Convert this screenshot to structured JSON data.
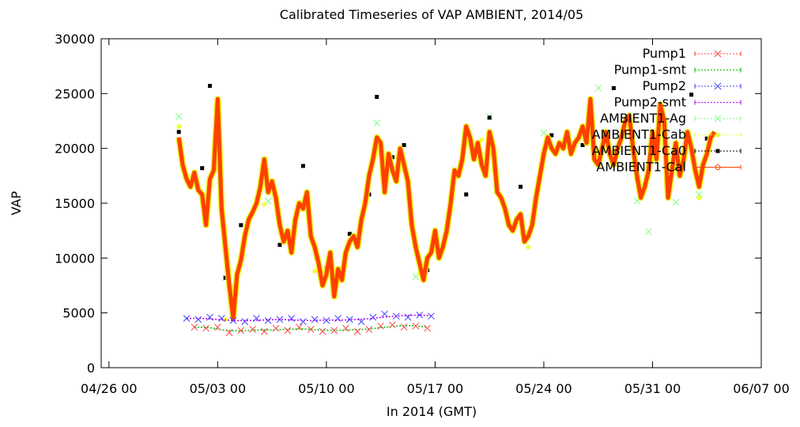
{
  "chart_data": {
    "type": "line",
    "title": "Calibrated Timeseries of VAP AMBIENT, 2014/05",
    "xlabel": "In 2014 (GMT)",
    "ylabel": "VAP",
    "xlim": [
      "2014-04-25T12:00",
      "2014-06-07T00:00"
    ],
    "ylim": [
      0,
      30000
    ],
    "x_ticks": [
      {
        "label": "04/26 00",
        "date": "2014-04-26T00:00"
      },
      {
        "label": "05/03 00",
        "date": "2014-05-03T00:00"
      },
      {
        "label": "05/10 00",
        "date": "2014-05-10T00:00"
      },
      {
        "label": "05/17 00",
        "date": "2014-05-17T00:00"
      },
      {
        "label": "05/24 00",
        "date": "2014-05-24T00:00"
      },
      {
        "label": "05/31 00",
        "date": "2014-05-31T00:00"
      },
      {
        "label": "06/07 00",
        "date": "2014-06-07T00:00"
      }
    ],
    "y_ticks": [
      "0",
      "5000",
      "10000",
      "15000",
      "20000",
      "25000",
      "30000"
    ],
    "legend_position": "top-right",
    "series": [
      {
        "name": "Pump1",
        "color": "#ff4040",
        "marker": "x",
        "style": "markers",
        "x": [
          "2014-05-01T12:00",
          "2014-05-02T06:00",
          "2014-05-03T00:00",
          "2014-05-03T18:00",
          "2014-05-04T12:00",
          "2014-05-05T06:00",
          "2014-05-06T00:00",
          "2014-05-06T18:00",
          "2014-05-07T12:00",
          "2014-05-08T06:00",
          "2014-05-09T00:00",
          "2014-05-09T18:00",
          "2014-05-10T12:00",
          "2014-05-11T06:00",
          "2014-05-12T00:00",
          "2014-05-12T18:00",
          "2014-05-13T12:00",
          "2014-05-14T06:00",
          "2014-05-15T00:00",
          "2014-05-15T18:00",
          "2014-05-16T12:00"
        ],
        "y": [
          3700,
          3600,
          3700,
          3200,
          3400,
          3500,
          3300,
          3600,
          3400,
          3700,
          3500,
          3300,
          3400,
          3600,
          3300,
          3500,
          3800,
          3900,
          3700,
          3800,
          3600
        ]
      },
      {
        "name": "Pump1-smt",
        "color": "#00c000",
        "style": "dotted-line",
        "x": [
          "2014-05-01T12:00",
          "2014-05-02T12:00",
          "2014-05-03T12:00",
          "2014-05-04T12:00",
          "2014-05-05T12:00",
          "2014-05-06T12:00",
          "2014-05-07T12:00",
          "2014-05-08T12:00",
          "2014-05-09T12:00",
          "2014-05-10T12:00",
          "2014-05-11T12:00",
          "2014-05-12T12:00",
          "2014-05-13T12:00",
          "2014-05-14T12:00",
          "2014-05-15T12:00",
          "2014-05-16T12:00"
        ],
        "y": [
          3700,
          3650,
          3400,
          3350,
          3450,
          3450,
          3500,
          3550,
          3450,
          3400,
          3450,
          3500,
          3650,
          3800,
          3850,
          3700
        ]
      },
      {
        "name": "Pump2",
        "color": "#4040ff",
        "marker": "x",
        "style": "markers",
        "x": [
          "2014-05-01T00:00",
          "2014-05-01T18:00",
          "2014-05-02T12:00",
          "2014-05-03T06:00",
          "2014-05-04T00:00",
          "2014-05-04T18:00",
          "2014-05-05T12:00",
          "2014-05-06T06:00",
          "2014-05-07T00:00",
          "2014-05-07T18:00",
          "2014-05-08T12:00",
          "2014-05-09T06:00",
          "2014-05-10T00:00",
          "2014-05-10T18:00",
          "2014-05-11T12:00",
          "2014-05-12T06:00",
          "2014-05-13T00:00",
          "2014-05-13T18:00",
          "2014-05-14T12:00",
          "2014-05-15T06:00",
          "2014-05-16T00:00",
          "2014-05-16T18:00"
        ],
        "y": [
          4500,
          4400,
          4600,
          4500,
          4300,
          4200,
          4500,
          4300,
          4400,
          4500,
          4200,
          4400,
          4300,
          4500,
          4400,
          4200,
          4600,
          4900,
          4700,
          4600,
          4800,
          4700
        ]
      },
      {
        "name": "Pump2-smt",
        "color": "#c000ff",
        "style": "dotted-line",
        "x": [
          "2014-05-01T00:00",
          "2014-05-02T00:00",
          "2014-05-03T00:00",
          "2014-05-04T00:00",
          "2014-05-05T00:00",
          "2014-05-06T00:00",
          "2014-05-07T00:00",
          "2014-05-08T00:00",
          "2014-05-09T00:00",
          "2014-05-10T00:00",
          "2014-05-11T00:00",
          "2014-05-12T00:00",
          "2014-05-13T00:00",
          "2014-05-14T00:00",
          "2014-05-15T00:00",
          "2014-05-16T00:00",
          "2014-05-16T18:00"
        ],
        "y": [
          4500,
          4500,
          4400,
          4300,
          4300,
          4350,
          4400,
          4350,
          4300,
          4350,
          4350,
          4400,
          4500,
          4650,
          4750,
          4800,
          4750
        ]
      },
      {
        "name": "AMBIENT1-Ag",
        "color": "#80ff80",
        "marker": "x",
        "style": "markers",
        "x": [
          "2014-04-30T12:00",
          "2014-05-01T12:00",
          "2014-05-02T12:00",
          "2014-05-03T12:00",
          "2014-05-06T06:00",
          "2014-05-10T12:00",
          "2014-05-13T06:00",
          "2014-05-15T18:00",
          "2014-05-20T12:00",
          "2014-05-24T00:00",
          "2014-05-27T12:00",
          "2014-05-30T00:00",
          "2014-05-30T18:00",
          "2014-06-01T12:00",
          "2014-06-03T00:00"
        ],
        "y": [
          22900,
          17400,
          16800,
          8200,
          15200,
          6800,
          22300,
          8300,
          22900,
          21400,
          25500,
          15200,
          12400,
          15100,
          15800
        ]
      },
      {
        "name": "AMBIENT1-Cab",
        "color": "#f0ff40",
        "marker": "dot",
        "style": "markers",
        "x": [
          "2014-04-30T12:00",
          "2014-05-02T00:00",
          "2014-05-03T12:00",
          "2014-05-06T00:00",
          "2014-05-09T06:00",
          "2014-05-13T06:00",
          "2014-05-16T00:00",
          "2014-05-20T00:00",
          "2014-05-23T00:00",
          "2014-05-27T00:00",
          "2014-05-31T00:00",
          "2014-06-03T00:00"
        ],
        "y": [
          22000,
          15500,
          4400,
          14900,
          8800,
          20500,
          8600,
          20800,
          11000,
          23500,
          18900,
          15500
        ]
      },
      {
        "name": "AMBIENT1-Ca0",
        "color": "#000000",
        "marker": "square",
        "style": "markers",
        "x": [
          "2014-04-30T12:00",
          "2014-05-01T06:00",
          "2014-05-02T00:00",
          "2014-05-02T12:00",
          "2014-05-03T12:00",
          "2014-05-04T12:00",
          "2014-05-06T00:00",
          "2014-05-07T00:00",
          "2014-05-08T12:00",
          "2014-05-10T00:00",
          "2014-05-11T12:00",
          "2014-05-12T18:00",
          "2014-05-13T06:00",
          "2014-05-14T06:00",
          "2014-05-15T00:00",
          "2014-05-16T12:00",
          "2014-05-17T18:00",
          "2014-05-19T00:00",
          "2014-05-20T12:00",
          "2014-05-22T12:00",
          "2014-05-24T12:00",
          "2014-05-26T12:00",
          "2014-05-28T12:00",
          "2014-05-30T00:00",
          "2014-05-31T00:00",
          "2014-06-01T12:00",
          "2014-06-02T12:00",
          "2014-06-03T12:00"
        ],
        "y": [
          21500,
          16800,
          18200,
          25700,
          8200,
          13000,
          17800,
          11200,
          18400,
          9100,
          12200,
          15800,
          24700,
          19200,
          20300,
          8900,
          12400,
          15800,
          22800,
          16500,
          21200,
          20300,
          25500,
          17200,
          20300,
          18200,
          24900,
          20900
        ]
      },
      {
        "name": "AMBIENT1-Cal",
        "color": "#ff4000",
        "marker": "circle",
        "style": "thick-line",
        "x": [
          "2014-04-30T12:00",
          "2014-04-30T18:00",
          "2014-05-01T00:00",
          "2014-05-01T06:00",
          "2014-05-01T12:00",
          "2014-05-01T18:00",
          "2014-05-02T00:00",
          "2014-05-02T06:00",
          "2014-05-02T12:00",
          "2014-05-02T18:00",
          "2014-05-03T00:00",
          "2014-05-03T06:00",
          "2014-05-03T12:00",
          "2014-05-03T18:00",
          "2014-05-04T00:00",
          "2014-05-04T06:00",
          "2014-05-04T12:00",
          "2014-05-04T18:00",
          "2014-05-05T00:00",
          "2014-05-05T06:00",
          "2014-05-05T12:00",
          "2014-05-05T18:00",
          "2014-05-06T00:00",
          "2014-05-06T06:00",
          "2014-05-06T12:00",
          "2014-05-06T18:00",
          "2014-05-07T00:00",
          "2014-05-07T06:00",
          "2014-05-07T12:00",
          "2014-05-07T18:00",
          "2014-05-08T00:00",
          "2014-05-08T06:00",
          "2014-05-08T12:00",
          "2014-05-08T18:00",
          "2014-05-09T00:00",
          "2014-05-09T06:00",
          "2014-05-09T12:00",
          "2014-05-09T18:00",
          "2014-05-10T00:00",
          "2014-05-10T06:00",
          "2014-05-10T12:00",
          "2014-05-10T18:00",
          "2014-05-11T00:00",
          "2014-05-11T06:00",
          "2014-05-11T12:00",
          "2014-05-11T18:00",
          "2014-05-12T00:00",
          "2014-05-12T06:00",
          "2014-05-12T12:00",
          "2014-05-12T18:00",
          "2014-05-13T00:00",
          "2014-05-13T06:00",
          "2014-05-13T12:00",
          "2014-05-13T18:00",
          "2014-05-14T00:00",
          "2014-05-14T06:00",
          "2014-05-14T12:00",
          "2014-05-14T18:00",
          "2014-05-15T00:00",
          "2014-05-15T06:00",
          "2014-05-15T12:00",
          "2014-05-15T18:00",
          "2014-05-16T00:00",
          "2014-05-16T06:00",
          "2014-05-16T12:00",
          "2014-05-16T18:00",
          "2014-05-17T00:00",
          "2014-05-17T06:00",
          "2014-05-17T12:00",
          "2014-05-17T18:00",
          "2014-05-18T00:00",
          "2014-05-18T06:00",
          "2014-05-18T12:00",
          "2014-05-18T18:00",
          "2014-05-19T00:00",
          "2014-05-19T06:00",
          "2014-05-19T12:00",
          "2014-05-19T18:00",
          "2014-05-20T00:00",
          "2014-05-20T06:00",
          "2014-05-20T12:00",
          "2014-05-20T18:00",
          "2014-05-21T00:00",
          "2014-05-21T06:00",
          "2014-05-21T12:00",
          "2014-05-21T18:00",
          "2014-05-22T00:00",
          "2014-05-22T06:00",
          "2014-05-22T12:00",
          "2014-05-22T18:00",
          "2014-05-23T00:00",
          "2014-05-23T06:00",
          "2014-05-23T12:00",
          "2014-05-23T18:00",
          "2014-05-24T00:00",
          "2014-05-24T06:00",
          "2014-05-24T12:00",
          "2014-05-24T18:00",
          "2014-05-25T00:00",
          "2014-05-25T06:00",
          "2014-05-25T12:00",
          "2014-05-25T18:00",
          "2014-05-26T00:00",
          "2014-05-26T06:00",
          "2014-05-26T12:00",
          "2014-05-26T18:00",
          "2014-05-27T00:00",
          "2014-05-27T06:00",
          "2014-05-27T12:00",
          "2014-05-27T18:00",
          "2014-05-28T00:00",
          "2014-05-28T06:00",
          "2014-05-28T12:00",
          "2014-05-28T18:00",
          "2014-05-29T00:00",
          "2014-05-29T06:00",
          "2014-05-29T12:00",
          "2014-05-29T18:00",
          "2014-05-30T00:00",
          "2014-05-30T06:00",
          "2014-05-30T12:00",
          "2014-05-30T18:00",
          "2014-05-31T00:00",
          "2014-05-31T06:00",
          "2014-05-31T12:00",
          "2014-05-31T18:00",
          "2014-06-01T00:00",
          "2014-06-01T06:00",
          "2014-06-01T12:00",
          "2014-06-01T18:00",
          "2014-06-02T00:00",
          "2014-06-02T06:00",
          "2014-06-02T12:00",
          "2014-06-02T18:00",
          "2014-06-03T00:00",
          "2014-06-03T06:00",
          "2014-06-03T12:00",
          "2014-06-03T18:00",
          "2014-06-04T00:00"
        ],
        "y": [
          21000,
          18500,
          17200,
          16500,
          17800,
          16200,
          15800,
          13000,
          17200,
          18000,
          24500,
          14500,
          11000,
          7500,
          4500,
          8500,
          9800,
          12000,
          13500,
          14200,
          15000,
          16500,
          19000,
          16000,
          17000,
          15500,
          13000,
          11500,
          12500,
          10500,
          13500,
          15000,
          14500,
          16000,
          12000,
          11000,
          9500,
          7500,
          8500,
          10500,
          6500,
          9000,
          8000,
          10500,
          11500,
          12000,
          11000,
          13500,
          15000,
          17500,
          19000,
          21000,
          20500,
          16000,
          19500,
          18000,
          17000,
          20000,
          18500,
          17000,
          13000,
          11000,
          9500,
          8000,
          10000,
          10500,
          12500,
          10000,
          11000,
          12500,
          15000,
          18000,
          17500,
          19000,
          22000,
          21000,
          19000,
          20500,
          18500,
          17500,
          21500,
          20000,
          16000,
          15500,
          14500,
          13000,
          12500,
          13500,
          14000,
          11500,
          12000,
          13000,
          15500,
          17500,
          19500,
          21000,
          20000,
          19500,
          20500,
          20000,
          21500,
          19500,
          20500,
          21000,
          22000,
          20500,
          24500,
          19000,
          18500,
          20000,
          21500,
          19500,
          18500,
          20000,
          21000,
          22500,
          23000,
          20000,
          17500,
          15500,
          16500,
          18000,
          21500,
          19000,
          24000,
          22500,
          15500,
          18000,
          20500,
          17500,
          19000,
          21500,
          20000,
          18000,
          16500,
          18500,
          19500,
          21000,
          21500
        ]
      }
    ]
  }
}
